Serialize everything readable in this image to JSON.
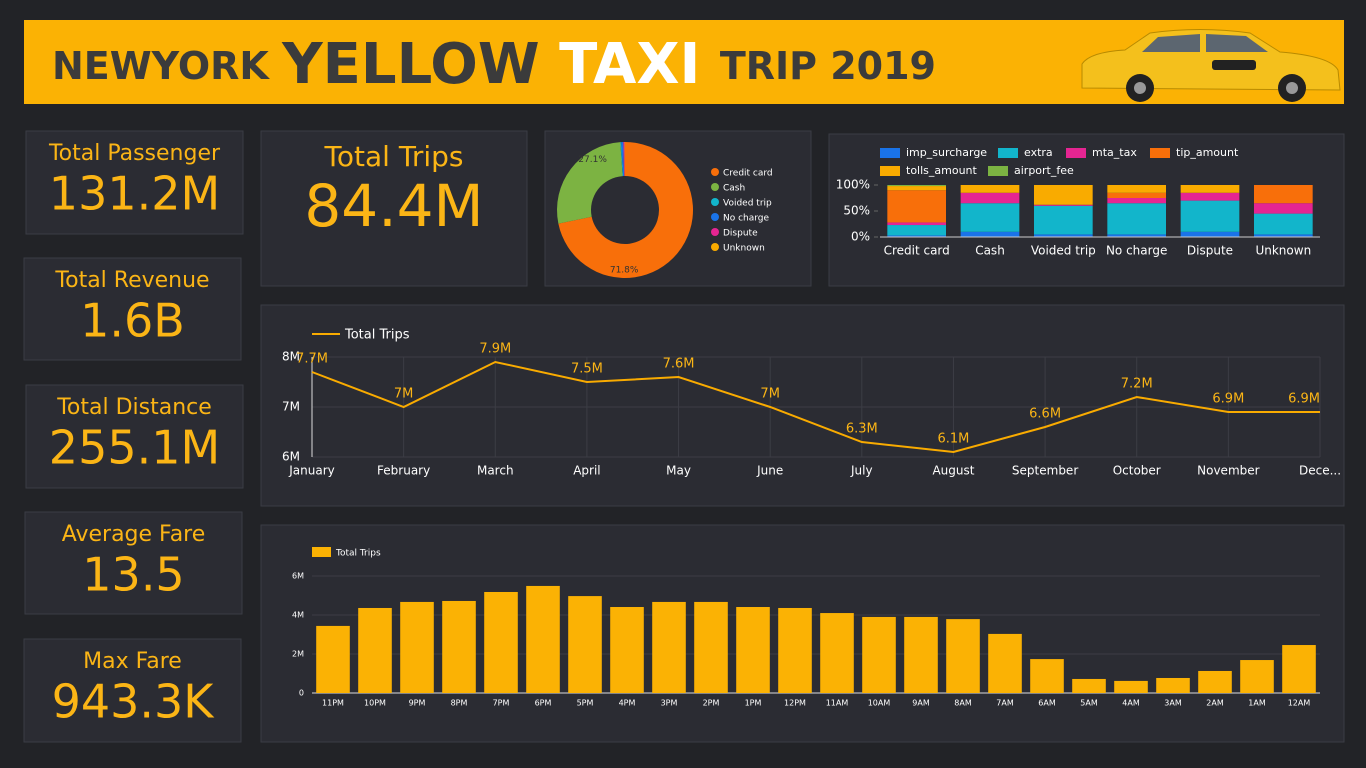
{
  "header": {
    "title": [
      "NEWYORK ",
      "YELLOW ",
      "TAXI ",
      "TRIP 2019"
    ]
  },
  "kpis": [
    {
      "label": "Total Passenger",
      "value": "131.2M"
    },
    {
      "label": "Total Revenue",
      "value": "1.6B"
    },
    {
      "label": "Total Distance",
      "value": "255.1M"
    },
    {
      "label": "Average Fare",
      "value": "13.5"
    },
    {
      "label": "Max Fare",
      "value": "943.3K"
    },
    {
      "label": "Total Trips",
      "value": "84.4M"
    }
  ],
  "chart_data": [
    {
      "type": "pie",
      "categories": [
        "Credit card",
        "Cash",
        "Voided trip",
        "No charge",
        "Dispute",
        "Unknown"
      ],
      "values": [
        71.8,
        27.1,
        0.2,
        0.5,
        0.3,
        0.1
      ],
      "value_labels": [
        "71.8%",
        "27.1%",
        null,
        null,
        null,
        null
      ],
      "colors": [
        "#f86f0a",
        "#7cb342",
        "#12b5cb",
        "#1a73e8",
        "#e52592",
        "#f9ab00"
      ]
    },
    {
      "type": "stacked_bar",
      "categories": [
        "Credit card",
        "Cash",
        "Voided trip",
        "No charge",
        "Dispute",
        "Unknown"
      ],
      "series": [
        {
          "name": "imp_surcharge",
          "color": "#1a73e8",
          "values": [
            3,
            10,
            5,
            5,
            10,
            5
          ]
        },
        {
          "name": "extra",
          "color": "#12b5cb",
          "values": [
            20,
            55,
            55,
            60,
            60,
            40
          ]
        },
        {
          "name": "mta_tax",
          "color": "#e52592",
          "values": [
            5,
            20,
            2,
            10,
            15,
            20
          ]
        },
        {
          "name": "tip_amount",
          "color": "#f86f0a",
          "values": [
            62,
            0,
            0,
            10,
            0,
            35
          ]
        },
        {
          "name": "tolls_amount",
          "color": "#f9ab00",
          "values": [
            8,
            15,
            38,
            15,
            15,
            0
          ]
        },
        {
          "name": "airport_fee",
          "color": "#7cb342",
          "values": [
            2,
            0,
            0,
            0,
            0,
            0
          ]
        }
      ],
      "ylim": [
        0,
        100
      ],
      "yticks": [
        {
          "value": 0,
          "label": "0%"
        },
        {
          "value": 50,
          "label": "50%"
        },
        {
          "value": 100,
          "label": "100%"
        }
      ]
    },
    {
      "type": "line",
      "categories": [
        "January",
        "February",
        "March",
        "April",
        "May",
        "June",
        "July",
        "August",
        "September",
        "October",
        "November",
        "Dece..."
      ],
      "series": [
        {
          "name": "Total Trips",
          "color": "#f9ab00",
          "values": [
            7.7,
            7.0,
            7.9,
            7.5,
            7.6,
            7.0,
            6.3,
            6.1,
            6.6,
            7.2,
            6.9,
            6.9
          ],
          "value_labels": [
            "7.7M",
            "7M",
            "7.9M",
            "7.5M",
            "7.6M",
            "7M",
            "6.3M",
            "6.1M",
            "6.6M",
            "7.2M",
            "6.9M",
            "6.9M"
          ]
        }
      ],
      "ylim": [
        6,
        8
      ],
      "yticks": [
        {
          "value": 6,
          "label": "6M"
        },
        {
          "value": 7,
          "label": "7M"
        },
        {
          "value": 8,
          "label": "8M"
        }
      ],
      "grid": true
    },
    {
      "type": "bar",
      "categories": [
        "11PM",
        "10PM",
        "9PM",
        "8PM",
        "7PM",
        "6PM",
        "5PM",
        "4PM",
        "3PM",
        "2PM",
        "1PM",
        "12PM",
        "11AM",
        "10AM",
        "9AM",
        "8AM",
        "7AM",
        "6AM",
        "5AM",
        "4AM",
        "3AM",
        "2AM",
        "1AM",
        "12AM"
      ],
      "series": [
        {
          "name": "Total Trips",
          "color": "#fbb204",
          "values": [
            3.44,
            4.36,
            4.67,
            4.72,
            5.18,
            5.49,
            4.97,
            4.41,
            4.67,
            4.67,
            4.41,
            4.36,
            4.1,
            3.9,
            3.9,
            3.79,
            3.03,
            1.74,
            0.72,
            0.62,
            0.77,
            1.13,
            1.69,
            2.46
          ]
        }
      ],
      "ylim": [
        0,
        6
      ],
      "yticks": [
        0,
        {
          "value": 2,
          "label": "2M"
        },
        {
          "value": 4,
          "label": "4M"
        },
        {
          "value": 6,
          "label": "6M"
        }
      ],
      "grid": true
    }
  ]
}
